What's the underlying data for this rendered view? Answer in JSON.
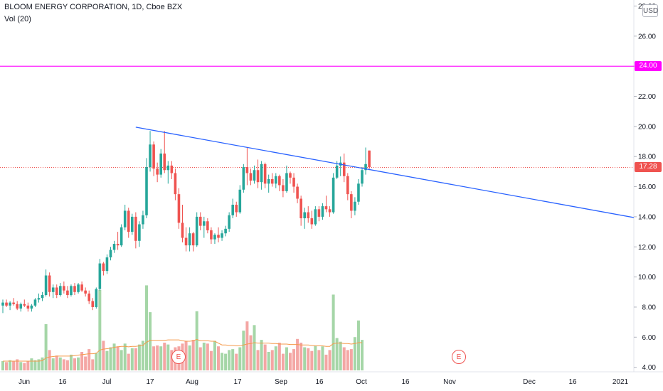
{
  "legend": {
    "symbol_line": "BLOOM ENERGY CORPORATION, 1D, Cboe BZX",
    "volume_line": "Vol (20)"
  },
  "currency_button": "USD",
  "price_tags": {
    "resistance": {
      "value": "24.00",
      "color": "#ff00ff"
    },
    "last": {
      "value": "17.28",
      "color": "#ef5350"
    }
  },
  "earnings_marker": "E",
  "colors": {
    "up": "#26a69a",
    "down": "#ef5350",
    "trendline": "#2962ff",
    "volume_ma": "#f59a4b",
    "vol_up": "#a5d6a7",
    "vol_down": "#f4a6a4"
  },
  "chart_data": {
    "type": "candlestick",
    "title": "BLOOM ENERGY CORPORATION, 1D, Cboe BZX",
    "y_axis": {
      "position": "right",
      "ticks": [
        "4.00",
        "6.00",
        "8.00",
        "10.00",
        "12.00",
        "14.00",
        "16.00",
        "18.00",
        "20.00",
        "22.00",
        "24.00",
        "26.00",
        "28.00"
      ],
      "ylim": [
        3.7,
        28.4
      ]
    },
    "x_axis": {
      "ticks": [
        "Jun",
        "16",
        "Jul",
        "17",
        "Aug",
        "17",
        "Sep",
        "16",
        "Oct",
        "16",
        "Nov",
        "Dec",
        "16",
        "2021"
      ]
    },
    "candles": [
      {
        "o": 8.1,
        "h": 8.5,
        "l": 7.6,
        "c": 8.3
      },
      {
        "o": 8.3,
        "h": 8.5,
        "l": 8.0,
        "c": 8.1
      },
      {
        "o": 8.1,
        "h": 8.4,
        "l": 7.8,
        "c": 8.3
      },
      {
        "o": 8.3,
        "h": 8.6,
        "l": 8.1,
        "c": 8.2
      },
      {
        "o": 8.2,
        "h": 8.4,
        "l": 7.8,
        "c": 7.9
      },
      {
        "o": 7.9,
        "h": 8.3,
        "l": 7.7,
        "c": 8.2
      },
      {
        "o": 8.2,
        "h": 8.5,
        "l": 8.0,
        "c": 8.1
      },
      {
        "o": 8.1,
        "h": 8.3,
        "l": 7.7,
        "c": 7.9
      },
      {
        "o": 7.9,
        "h": 8.2,
        "l": 7.7,
        "c": 8.1
      },
      {
        "o": 8.1,
        "h": 8.6,
        "l": 8.0,
        "c": 8.5
      },
      {
        "o": 8.5,
        "h": 8.9,
        "l": 8.3,
        "c": 8.6
      },
      {
        "o": 8.6,
        "h": 9.0,
        "l": 8.4,
        "c": 8.8
      },
      {
        "o": 8.8,
        "h": 10.5,
        "l": 8.7,
        "c": 10.1
      },
      {
        "o": 10.1,
        "h": 10.3,
        "l": 8.7,
        "c": 9.0
      },
      {
        "o": 9.0,
        "h": 9.5,
        "l": 8.6,
        "c": 9.3
      },
      {
        "o": 9.3,
        "h": 9.5,
        "l": 8.6,
        "c": 8.8
      },
      {
        "o": 8.8,
        "h": 9.6,
        "l": 8.7,
        "c": 9.4
      },
      {
        "o": 9.4,
        "h": 9.7,
        "l": 8.9,
        "c": 9.1
      },
      {
        "o": 9.1,
        "h": 9.4,
        "l": 8.6,
        "c": 8.8
      },
      {
        "o": 8.8,
        "h": 9.5,
        "l": 8.7,
        "c": 9.4
      },
      {
        "o": 9.4,
        "h": 9.6,
        "l": 8.8,
        "c": 9.0
      },
      {
        "o": 9.0,
        "h": 9.6,
        "l": 8.9,
        "c": 9.5
      },
      {
        "o": 9.5,
        "h": 9.7,
        "l": 9.0,
        "c": 9.1
      },
      {
        "o": 9.1,
        "h": 9.3,
        "l": 8.7,
        "c": 8.9
      },
      {
        "o": 8.9,
        "h": 9.1,
        "l": 8.2,
        "c": 8.4
      },
      {
        "o": 8.4,
        "h": 8.6,
        "l": 7.8,
        "c": 8.0
      },
      {
        "o": 8.0,
        "h": 9.3,
        "l": 7.9,
        "c": 9.2
      },
      {
        "o": 9.2,
        "h": 11.2,
        "l": 9.1,
        "c": 10.9
      },
      {
        "o": 10.9,
        "h": 11.0,
        "l": 10.1,
        "c": 10.4
      },
      {
        "o": 10.4,
        "h": 11.5,
        "l": 10.2,
        "c": 11.3
      },
      {
        "o": 11.3,
        "h": 12.0,
        "l": 11.1,
        "c": 11.8
      },
      {
        "o": 11.8,
        "h": 12.4,
        "l": 11.6,
        "c": 12.2
      },
      {
        "o": 12.2,
        "h": 13.0,
        "l": 11.8,
        "c": 12.1
      },
      {
        "o": 12.1,
        "h": 13.5,
        "l": 12.0,
        "c": 13.3
      },
      {
        "o": 13.3,
        "h": 14.8,
        "l": 13.1,
        "c": 14.4
      },
      {
        "o": 14.4,
        "h": 14.6,
        "l": 12.6,
        "c": 13.0
      },
      {
        "o": 13.0,
        "h": 14.2,
        "l": 12.8,
        "c": 14.0
      },
      {
        "o": 14.0,
        "h": 14.3,
        "l": 11.9,
        "c": 12.4
      },
      {
        "o": 12.4,
        "h": 13.7,
        "l": 12.0,
        "c": 13.5
      },
      {
        "o": 13.5,
        "h": 14.4,
        "l": 13.2,
        "c": 14.1
      },
      {
        "o": 14.1,
        "h": 17.9,
        "l": 13.9,
        "c": 17.3
      },
      {
        "o": 17.3,
        "h": 19.7,
        "l": 17.0,
        "c": 18.8
      },
      {
        "o": 18.8,
        "h": 19.0,
        "l": 16.7,
        "c": 17.2
      },
      {
        "o": 17.2,
        "h": 17.6,
        "l": 16.3,
        "c": 16.8
      },
      {
        "o": 16.8,
        "h": 18.5,
        "l": 16.6,
        "c": 18.2
      },
      {
        "o": 18.2,
        "h": 19.7,
        "l": 16.9,
        "c": 17.1
      },
      {
        "o": 17.1,
        "h": 17.7,
        "l": 16.2,
        "c": 17.4
      },
      {
        "o": 17.4,
        "h": 17.7,
        "l": 16.5,
        "c": 16.9
      },
      {
        "o": 16.9,
        "h": 17.2,
        "l": 15.1,
        "c": 15.5
      },
      {
        "o": 15.5,
        "h": 15.9,
        "l": 13.2,
        "c": 13.6
      },
      {
        "o": 13.6,
        "h": 14.8,
        "l": 12.3,
        "c": 12.6
      },
      {
        "o": 12.6,
        "h": 13.3,
        "l": 11.7,
        "c": 12.1
      },
      {
        "o": 12.1,
        "h": 13.3,
        "l": 11.7,
        "c": 12.9
      },
      {
        "o": 12.9,
        "h": 13.0,
        "l": 11.7,
        "c": 12.1
      },
      {
        "o": 12.1,
        "h": 14.3,
        "l": 12.0,
        "c": 14.0
      },
      {
        "o": 14.0,
        "h": 14.3,
        "l": 13.1,
        "c": 13.4
      },
      {
        "o": 13.4,
        "h": 14.0,
        "l": 12.6,
        "c": 13.7
      },
      {
        "o": 13.7,
        "h": 13.9,
        "l": 12.9,
        "c": 13.1
      },
      {
        "o": 13.1,
        "h": 13.3,
        "l": 12.2,
        "c": 12.5
      },
      {
        "o": 12.5,
        "h": 12.9,
        "l": 12.2,
        "c": 12.8
      },
      {
        "o": 12.8,
        "h": 13.3,
        "l": 12.3,
        "c": 12.6
      },
      {
        "o": 12.6,
        "h": 13.1,
        "l": 12.4,
        "c": 12.9
      },
      {
        "o": 12.9,
        "h": 13.4,
        "l": 12.7,
        "c": 13.2
      },
      {
        "o": 13.2,
        "h": 14.3,
        "l": 13.0,
        "c": 14.1
      },
      {
        "o": 14.1,
        "h": 15.2,
        "l": 13.9,
        "c": 14.8
      },
      {
        "o": 14.8,
        "h": 15.0,
        "l": 14.0,
        "c": 14.3
      },
      {
        "o": 14.3,
        "h": 16.1,
        "l": 14.2,
        "c": 15.8
      },
      {
        "o": 15.8,
        "h": 17.5,
        "l": 15.6,
        "c": 17.3
      },
      {
        "o": 17.3,
        "h": 18.6,
        "l": 16.1,
        "c": 16.9
      },
      {
        "o": 16.9,
        "h": 17.2,
        "l": 16.1,
        "c": 16.4
      },
      {
        "o": 16.4,
        "h": 17.4,
        "l": 16.2,
        "c": 17.1
      },
      {
        "o": 17.1,
        "h": 17.8,
        "l": 15.9,
        "c": 16.3
      },
      {
        "o": 16.3,
        "h": 17.7,
        "l": 15.8,
        "c": 17.5
      },
      {
        "o": 17.5,
        "h": 17.6,
        "l": 15.9,
        "c": 16.2
      },
      {
        "o": 16.2,
        "h": 16.8,
        "l": 15.6,
        "c": 16.5
      },
      {
        "o": 16.5,
        "h": 16.9,
        "l": 16.0,
        "c": 16.2
      },
      {
        "o": 16.2,
        "h": 16.9,
        "l": 15.9,
        "c": 16.7
      },
      {
        "o": 16.7,
        "h": 16.8,
        "l": 15.7,
        "c": 16.1
      },
      {
        "o": 16.1,
        "h": 16.5,
        "l": 15.3,
        "c": 15.7
      },
      {
        "o": 15.7,
        "h": 17.4,
        "l": 15.6,
        "c": 16.9
      },
      {
        "o": 16.9,
        "h": 17.0,
        "l": 16.2,
        "c": 16.6
      },
      {
        "o": 16.6,
        "h": 16.9,
        "l": 15.6,
        "c": 16.0
      },
      {
        "o": 16.0,
        "h": 16.2,
        "l": 14.9,
        "c": 15.2
      },
      {
        "o": 15.2,
        "h": 15.4,
        "l": 13.4,
        "c": 13.9
      },
      {
        "o": 13.9,
        "h": 14.6,
        "l": 13.2,
        "c": 14.3
      },
      {
        "o": 14.3,
        "h": 14.7,
        "l": 13.6,
        "c": 13.9
      },
      {
        "o": 13.9,
        "h": 14.4,
        "l": 13.2,
        "c": 13.5
      },
      {
        "o": 13.5,
        "h": 14.7,
        "l": 13.4,
        "c": 14.5
      },
      {
        "o": 14.5,
        "h": 14.7,
        "l": 13.7,
        "c": 14.0
      },
      {
        "o": 14.0,
        "h": 14.9,
        "l": 13.8,
        "c": 14.7
      },
      {
        "o": 14.7,
        "h": 15.4,
        "l": 14.3,
        "c": 14.5
      },
      {
        "o": 14.5,
        "h": 14.7,
        "l": 14.0,
        "c": 14.3
      },
      {
        "o": 14.3,
        "h": 16.9,
        "l": 14.2,
        "c": 16.6
      },
      {
        "o": 16.6,
        "h": 17.7,
        "l": 16.5,
        "c": 17.4
      },
      {
        "o": 17.4,
        "h": 18.0,
        "l": 16.7,
        "c": 17.6
      },
      {
        "o": 17.6,
        "h": 18.2,
        "l": 16.3,
        "c": 16.7
      },
      {
        "o": 16.7,
        "h": 16.9,
        "l": 15.1,
        "c": 15.5
      },
      {
        "o": 15.5,
        "h": 15.7,
        "l": 13.9,
        "c": 14.4
      },
      {
        "o": 14.4,
        "h": 15.3,
        "l": 14.1,
        "c": 15.0
      },
      {
        "o": 15.0,
        "h": 16.5,
        "l": 14.8,
        "c": 16.2
      },
      {
        "o": 16.2,
        "h": 17.3,
        "l": 16.0,
        "c": 17.1
      },
      {
        "o": 17.1,
        "h": 18.6,
        "l": 16.8,
        "c": 17.5
      },
      {
        "o": 18.4,
        "h": 18.4,
        "l": 17.1,
        "c": 17.3
      }
    ],
    "volume": [
      1.0,
      0.9,
      1.1,
      1.0,
      1.2,
      0.9,
      0.8,
      1.0,
      1.3,
      1.1,
      1.2,
      1.4,
      5.0,
      2.2,
      1.3,
      1.6,
      1.4,
      1.2,
      1.1,
      1.7,
      1.3,
      1.4,
      2.0,
      1.5,
      2.3,
      1.2,
      1.9,
      8.7,
      3.2,
      2.1,
      2.5,
      2.9,
      2.6,
      2.2,
      2.9,
      1.8,
      2.4,
      2.4,
      2.8,
      3.2,
      9.2,
      6.3,
      2.6,
      2.7,
      2.6,
      3.0,
      2.8,
      2.2,
      2.5,
      2.6,
      2.9,
      3.2,
      2.7,
      3.3,
      6.4,
      2.5,
      3.0,
      2.9,
      2.1,
      3.2,
      2.6,
      1.9,
      1.8,
      2.2,
      2.3,
      1.8,
      2.5,
      4.3,
      5.3,
      3.8,
      4.9,
      2.2,
      3.3,
      2.8,
      2.0,
      2.2,
      2.6,
      3.0,
      1.8,
      2.5,
      1.9,
      2.3,
      3.4,
      3.0,
      2.5,
      2.4,
      2.1,
      2.7,
      2.2,
      2.6,
      1.7,
      2.2,
      8.2,
      3.5,
      3.1,
      2.5,
      2.2,
      2.3,
      3.6,
      5.4,
      3.3
    ],
    "volume_ma20": [
      1.0,
      1.0,
      1.0,
      1.0,
      1.0,
      1.0,
      1.0,
      1.0,
      1.0,
      1.0,
      1.0,
      1.05,
      1.35,
      1.45,
      1.5,
      1.55,
      1.55,
      1.55,
      1.55,
      1.55,
      1.6,
      1.65,
      1.7,
      1.75,
      1.8,
      1.8,
      1.85,
      2.2,
      2.3,
      2.35,
      2.4,
      2.5,
      2.55,
      2.6,
      2.6,
      2.55,
      2.6,
      2.6,
      2.65,
      2.7,
      3.05,
      3.25,
      3.25,
      3.25,
      3.25,
      3.25,
      3.3,
      3.3,
      3.3,
      3.3,
      3.2,
      3.15,
      3.15,
      3.2,
      3.35,
      3.2,
      3.2,
      3.2,
      3.15,
      3.15,
      2.95,
      2.75,
      2.75,
      2.7,
      2.7,
      2.65,
      2.65,
      2.75,
      2.85,
      2.9,
      3.0,
      2.95,
      2.95,
      2.95,
      2.95,
      2.9,
      2.9,
      2.85,
      2.85,
      2.85,
      2.8,
      2.8,
      2.8,
      2.75,
      2.75,
      2.75,
      2.7,
      2.65,
      2.65,
      2.65,
      2.6,
      2.6,
      2.9,
      2.95,
      2.95,
      2.9,
      2.9,
      2.85,
      2.9,
      3.0,
      3.0
    ],
    "trendline": {
      "from": {
        "candle_index": 37,
        "price": 19.95
      },
      "to": {
        "x_axis_label": "2021",
        "price": 13.95
      }
    },
    "horizontal_line": {
      "price": 24.0
    },
    "last_price": {
      "value": 17.28
    },
    "earnings_markers": [
      {
        "near_x_label": "Aug"
      },
      {
        "near_x_label": "Nov"
      }
    ]
  }
}
